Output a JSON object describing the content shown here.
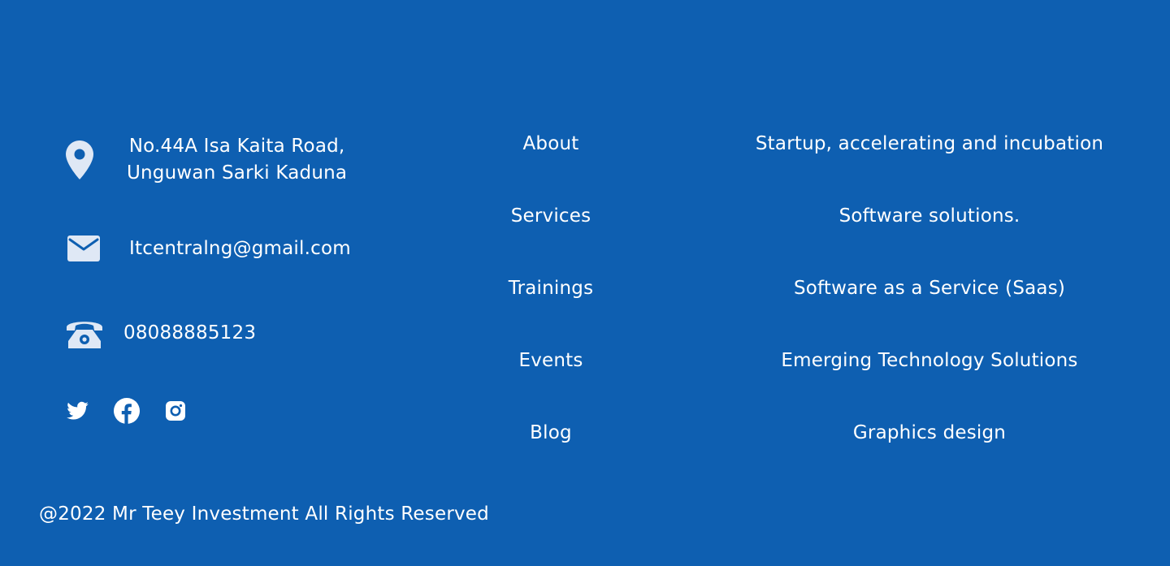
{
  "contact": {
    "address_line1": "No.44A Isa Kaita Road,",
    "address_line2": "Unguwan Sarki Kaduna",
    "email": "Itcentralng@gmail.com",
    "phone": "08088885123",
    "icons": {
      "address": "location-pin-icon",
      "email": "envelope-icon",
      "phone": "telephone-icon"
    }
  },
  "social": [
    {
      "name": "twitter-icon"
    },
    {
      "name": "facebook-icon"
    },
    {
      "name": "instagram-icon"
    }
  ],
  "nav": {
    "items": [
      {
        "label": "About"
      },
      {
        "label": "Services"
      },
      {
        "label": "Trainings"
      },
      {
        "label": "Events"
      },
      {
        "label": "Blog"
      }
    ]
  },
  "services": {
    "items": [
      {
        "label": "Startup, accelerating and incubation"
      },
      {
        "label": "Software solutions."
      },
      {
        "label": "Software as a Service (Saas)"
      },
      {
        "label": "Emerging Technology Solutions"
      },
      {
        "label": "Graphics design"
      }
    ]
  },
  "copyright": "@2022 Mr Teey Investment All Rights Reserved",
  "colors": {
    "background": "#0e5fb1",
    "text": "#ffffff",
    "icon": "#dfe8f5"
  }
}
